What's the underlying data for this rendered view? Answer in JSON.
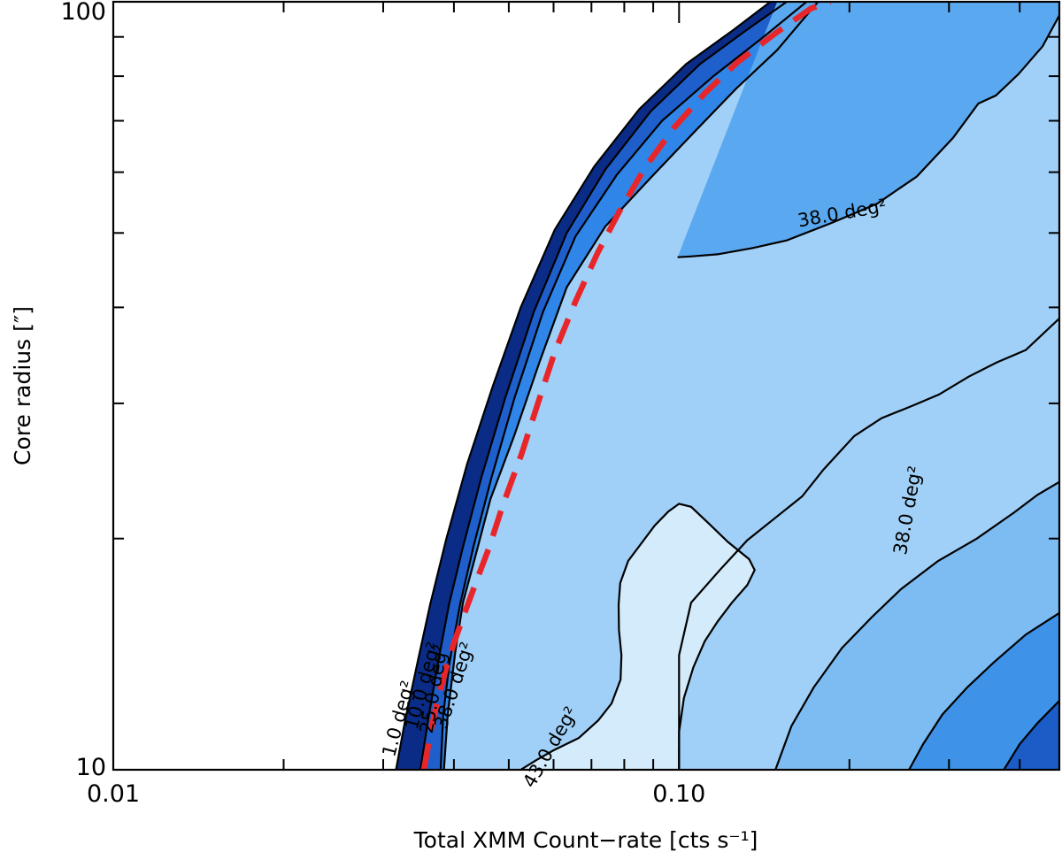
{
  "chart_data": {
    "type": "contour",
    "xlabel": "Total XMM Count−rate [cts s⁻¹]",
    "ylabel": "Core radius [″]",
    "x_scale": "log",
    "y_scale": "log",
    "xlim": [
      0.01,
      0.47
    ],
    "ylim": [
      10,
      100
    ],
    "x_tick_labels": [
      {
        "value": 0.01,
        "label": "0.01"
      },
      {
        "value": 0.1,
        "label": "0.10"
      }
    ],
    "y_tick_labels": [
      {
        "value": 10,
        "label": "10"
      },
      {
        "value": 100,
        "label": "100"
      }
    ],
    "grid": false,
    "colormap": {
      "low": "#d4ebfb",
      "mid": "#2c8ff0",
      "high": "#0a2c86"
    },
    "contours": [
      {
        "label": "1.0 deg²",
        "level": 1.0,
        "points": [
          [
            0.0316,
            10
          ],
          [
            0.0328,
            11.6
          ],
          [
            0.0345,
            13.8
          ],
          [
            0.0363,
            16.4
          ],
          [
            0.0388,
            20
          ],
          [
            0.0422,
            25
          ],
          [
            0.0468,
            31.5
          ],
          [
            0.0525,
            40
          ],
          [
            0.0603,
            50.5
          ],
          [
            0.0708,
            61
          ],
          [
            0.0851,
            72.5
          ],
          [
            0.103,
            83
          ],
          [
            0.125,
            92
          ],
          [
            0.145,
            100
          ]
        ],
        "label_at": {
          "x": 0.0327,
          "y": 11.6,
          "angle": -75
        }
      },
      {
        "label": "10.0 deg²",
        "level": 10.0,
        "points": [
          [
            0.0349,
            10
          ],
          [
            0.036,
            11.6
          ],
          [
            0.0375,
            13.8
          ],
          [
            0.0392,
            16.4
          ],
          [
            0.0415,
            19.5
          ],
          [
            0.0447,
            24
          ],
          [
            0.0493,
            30.5
          ],
          [
            0.0554,
            39.5
          ],
          [
            0.0633,
            50
          ],
          [
            0.0741,
            60.5
          ],
          [
            0.0891,
            72
          ],
          [
            0.109,
            83
          ],
          [
            0.132,
            92
          ],
          [
            0.155,
            100
          ]
        ],
        "label_at": {
          "x": 0.0361,
          "y": 12.8,
          "angle": -75
        }
      },
      {
        "label": "25.0 deg²",
        "level": 25.0,
        "points": [
          [
            0.0379,
            10
          ],
          [
            0.0383,
            11.8
          ],
          [
            0.0393,
            13.8
          ],
          [
            0.041,
            16.4
          ],
          [
            0.0433,
            19.5
          ],
          [
            0.0466,
            24
          ],
          [
            0.0512,
            30.5
          ],
          [
            0.0575,
            39.5
          ],
          [
            0.0656,
            49.5
          ],
          [
            0.0776,
            59.5
          ],
          [
            0.0933,
            70
          ],
          [
            0.115,
            80
          ],
          [
            0.141,
            90
          ],
          [
            0.168,
            100
          ]
        ],
        "label_at": {
          "x": 0.0378,
          "y": 12.7,
          "angle": -80
        }
      },
      {
        "label": "38.0 deg²",
        "level": 38.0,
        "points": [
          [
            0.0384,
            10
          ],
          [
            0.039,
            11.8
          ],
          [
            0.0402,
            14.2
          ],
          [
            0.0415,
            16.5
          ],
          [
            0.0436,
            18.9
          ],
          [
            0.0464,
            22.5
          ],
          [
            0.0511,
            27.2
          ],
          [
            0.0567,
            34
          ],
          [
            0.0633,
            42.5
          ],
          [
            0.0741,
            51
          ],
          [
            0.0891,
            59
          ],
          [
            0.106,
            67.5
          ],
          [
            0.126,
            77
          ],
          [
            0.149,
            86.5
          ],
          [
            0.176,
            100
          ]
        ],
        "label_at": {
          "x": 0.041,
          "y": 12.8,
          "angle": -72
        }
      },
      {
        "label": "38.0 deg²",
        "level": 38.0,
        "points": [
          [
            0.0994,
            46.5
          ],
          [
            0.105,
            46.6
          ],
          [
            0.117,
            46.9
          ],
          [
            0.135,
            47.8
          ],
          [
            0.155,
            48.9
          ],
          [
            0.187,
            51.6
          ],
          [
            0.224,
            54.6
          ],
          [
            0.263,
            59.2
          ],
          [
            0.305,
            66.5
          ],
          [
            0.338,
            73.7
          ],
          [
            0.363,
            75.5
          ],
          [
            0.398,
            80.5
          ],
          [
            0.439,
            87.5
          ],
          [
            0.47,
            96
          ]
        ],
        "label_at": {
          "x": 0.195,
          "y": 52.1,
          "angle": -10
        }
      },
      {
        "label": "38.0 deg²",
        "level": 38.0,
        "points": [
          [
            0.1,
            10
          ],
          [
            0.1,
            11.6
          ],
          [
            0.1,
            12.6
          ],
          [
            0.1,
            14.1
          ],
          [
            0.105,
            16.5
          ],
          [
            0.118,
            18.2
          ],
          [
            0.132,
            19.9
          ],
          [
            0.147,
            21.2
          ],
          [
            0.165,
            22.7
          ],
          [
            0.18,
            24.6
          ],
          [
            0.204,
            27.2
          ],
          [
            0.228,
            28.7
          ],
          [
            0.259,
            29.8
          ],
          [
            0.288,
            30.8
          ],
          [
            0.325,
            32.5
          ],
          [
            0.364,
            33.9
          ],
          [
            0.41,
            35.2
          ],
          [
            0.47,
            38.7
          ]
        ],
        "label_at": {
          "x": 0.26,
          "y": 21.7,
          "angle": -80
        }
      },
      {
        "label": "43.0 deg²",
        "level": 43.0,
        "points": [
          [
            0.0525,
            10
          ],
          [
            0.056,
            10.3
          ],
          [
            0.06,
            10.6
          ],
          [
            0.0665,
            11.0
          ],
          [
            0.072,
            11.6
          ],
          [
            0.076,
            12.2
          ],
          [
            0.0788,
            13.1
          ],
          [
            0.0791,
            14.1
          ],
          [
            0.0783,
            15.2
          ],
          [
            0.0782,
            16.4
          ],
          [
            0.0787,
            17.5
          ],
          [
            0.0813,
            18.7
          ],
          [
            0.0857,
            19.7
          ],
          [
            0.0906,
            20.8
          ],
          [
            0.0958,
            21.7
          ],
          [
            0.1,
            22.2
          ],
          [
            0.105,
            22.0
          ],
          [
            0.113,
            20.9
          ],
          [
            0.122,
            19.8
          ],
          [
            0.133,
            18.8
          ],
          [
            0.136,
            18.2
          ],
          [
            0.132,
            17.4
          ],
          [
            0.124,
            16.5
          ],
          [
            0.117,
            15.6
          ],
          [
            0.111,
            14.7
          ],
          [
            0.106,
            13.6
          ],
          [
            0.102,
            12.4
          ],
          [
            0.1,
            11.2
          ],
          [
            0.1,
            10
          ]
        ],
        "label_at": {
          "x": 0.0605,
          "y": 10.6,
          "angle": -60
        }
      },
      {
        "label": "",
        "level": null,
        "points": [
          [
            0.148,
            10
          ],
          [
            0.158,
            11.4
          ],
          [
            0.173,
            12.8
          ],
          [
            0.194,
            14.4
          ],
          [
            0.219,
            15.8
          ],
          [
            0.247,
            17.2
          ],
          [
            0.287,
            18.7
          ],
          [
            0.336,
            20.0
          ],
          [
            0.39,
            21.6
          ],
          [
            0.43,
            22.8
          ],
          [
            0.47,
            23.7
          ]
        ],
        "label_at": null
      },
      {
        "label": "",
        "level": null,
        "points": [
          [
            0.255,
            10
          ],
          [
            0.27,
            10.8
          ],
          [
            0.292,
            11.8
          ],
          [
            0.323,
            12.8
          ],
          [
            0.36,
            13.8
          ],
          [
            0.41,
            15.0
          ],
          [
            0.47,
            16.0
          ]
        ],
        "label_at": null
      },
      {
        "label": "",
        "level": null,
        "points": [
          [
            0.375,
            10
          ],
          [
            0.4,
            10.8
          ],
          [
            0.43,
            11.5
          ],
          [
            0.47,
            12.3
          ]
        ],
        "label_at": null
      }
    ],
    "threshold_line": {
      "style": "dashed",
      "color": "#e8262a",
      "points": [
        [
          0.0354,
          10
        ],
        [
          0.0363,
          11.1
        ],
        [
          0.0374,
          12.3
        ],
        [
          0.0387,
          13.5
        ],
        [
          0.0401,
          14.7
        ],
        [
          0.0418,
          16.0
        ],
        [
          0.0437,
          17.5
        ],
        [
          0.0462,
          19.5
        ],
        [
          0.0488,
          22.1
        ],
        [
          0.0527,
          25.8
        ],
        [
          0.0563,
          30.0
        ],
        [
          0.0603,
          35.0
        ],
        [
          0.0655,
          40.6
        ],
        [
          0.0718,
          47.1
        ],
        [
          0.0786,
          53.5
        ],
        [
          0.0873,
          61.0
        ],
        [
          0.0979,
          68.5
        ],
        [
          0.111,
          76.0
        ],
        [
          0.127,
          83.5
        ],
        [
          0.148,
          91.0
        ],
        [
          0.171,
          98.0
        ],
        [
          0.185,
          100
        ]
      ]
    }
  }
}
